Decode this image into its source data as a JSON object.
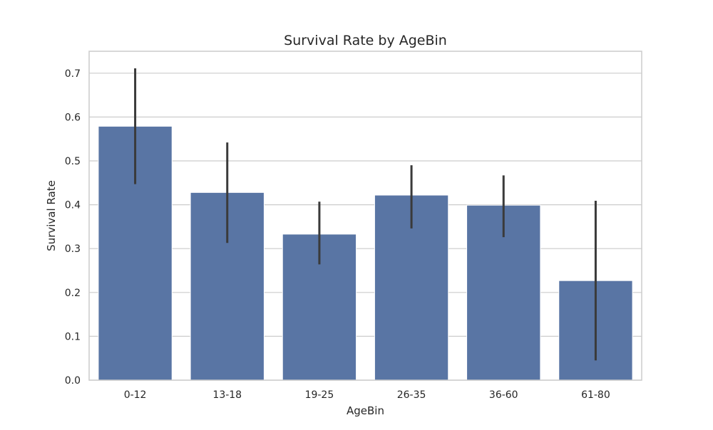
{
  "chart_data": {
    "type": "bar",
    "title": "Survival Rate by AgeBin",
    "xlabel": "AgeBin",
    "ylabel": "Survival Rate",
    "categories": [
      "0-12",
      "13-18",
      "19-25",
      "26-35",
      "36-60",
      "61-80"
    ],
    "values": [
      0.579,
      0.428,
      0.333,
      0.422,
      0.399,
      0.227
    ],
    "error_low": [
      0.447,
      0.313,
      0.264,
      0.346,
      0.326,
      0.045
    ],
    "error_high": [
      0.711,
      0.542,
      0.407,
      0.49,
      0.467,
      0.409
    ],
    "ylim": [
      0,
      0.75
    ],
    "yticks": [
      0.0,
      0.1,
      0.2,
      0.3,
      0.4,
      0.5,
      0.6,
      0.7
    ],
    "ytick_labels": [
      "0.0",
      "0.1",
      "0.2",
      "0.3",
      "0.4",
      "0.5",
      "0.6",
      "0.7"
    ],
    "grid": "horizontal",
    "colors": {
      "bar": "#5975a4",
      "errorbar": "#3a3a3a",
      "grid": "#cccccc",
      "frame": "#cccccc",
      "text": "#262626"
    }
  }
}
